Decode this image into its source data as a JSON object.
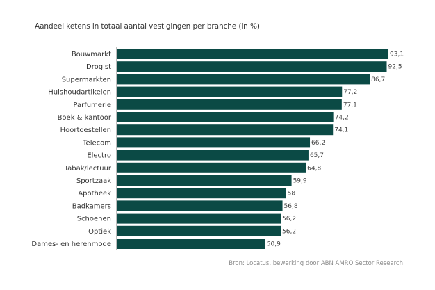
{
  "chart_data": {
    "type": "bar",
    "orientation": "horizontal",
    "title": "Aandeel ketens in totaal aantal vestigingen per branche (in %)",
    "xlabel": "",
    "ylabel": "",
    "xlim": [
      0,
      100
    ],
    "grid": false,
    "legend": null,
    "color": "#0b4a45",
    "categories": [
      "Bouwmarkt",
      "Drogist",
      "Supermarkten",
      "Huishoudartikelen",
      "Parfumerie",
      "Boek & kantoor",
      "Hoortoestellen",
      "Telecom",
      "Electro",
      "Tabak/lectuur",
      "Sportzaak",
      "Apotheek",
      "Badkamers",
      "Schoenen",
      "Optiek",
      "Dames- en herenmode"
    ],
    "values": [
      93.1,
      92.5,
      86.7,
      77.2,
      77.1,
      74.2,
      74.1,
      66.2,
      65.7,
      64.8,
      59.9,
      58,
      56.8,
      56.2,
      56.2,
      50.9
    ],
    "value_labels": [
      "93,1",
      "92,5",
      "86,7",
      "77,2",
      "77,1",
      "74,2",
      "74,1",
      "66,2",
      "65,7",
      "64,8",
      "59,9",
      "58",
      "56,8",
      "56,2",
      "56,2",
      "50,9"
    ]
  },
  "source": "Bron:  Locatus, bewerking door ABN AMRO Sector Research"
}
